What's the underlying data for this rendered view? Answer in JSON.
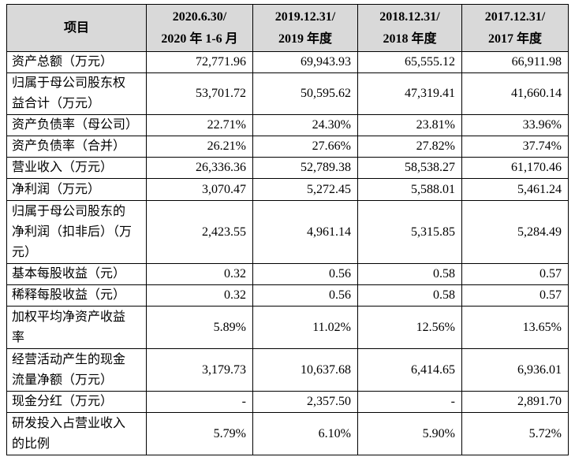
{
  "table": {
    "header": [
      [
        "项目"
      ],
      [
        "2020.6.30/",
        "2020 年 1-6 月"
      ],
      [
        "2019.12.31/",
        "2019 年度"
      ],
      [
        "2018.12.31/",
        "2018 年度"
      ],
      [
        "2017.12.31/",
        "2017 年度"
      ]
    ],
    "rows": [
      {
        "label": [
          "资产总额（万元）"
        ],
        "values": [
          "72,771.96",
          "69,943.93",
          "65,555.12",
          "66,911.98"
        ]
      },
      {
        "label": [
          "归属于母公司股东权",
          "益合计（万元）"
        ],
        "values": [
          "53,701.72",
          "50,595.62",
          "47,319.41",
          "41,660.14"
        ]
      },
      {
        "label": [
          "资产负债率（母公司）"
        ],
        "values": [
          "22.71%",
          "24.30%",
          "23.81%",
          "33.96%"
        ]
      },
      {
        "label": [
          "资产负债率（合并）"
        ],
        "values": [
          "26.21%",
          "27.66%",
          "27.82%",
          "37.74%"
        ]
      },
      {
        "label": [
          "营业收入（万元）"
        ],
        "values": [
          "26,336.36",
          "52,789.38",
          "58,538.27",
          "61,170.46"
        ]
      },
      {
        "label": [
          "净利润（万元）"
        ],
        "values": [
          "3,070.47",
          "5,272.45",
          "5,588.01",
          "5,461.24"
        ]
      },
      {
        "label": [
          "归属于母公司股东的",
          "净利润（扣非后）（万",
          "元）"
        ],
        "values": [
          "2,423.55",
          "4,961.14",
          "5,315.85",
          "5,284.49"
        ]
      },
      {
        "label": [
          "基本每股收益（元）"
        ],
        "values": [
          "0.32",
          "0.56",
          "0.58",
          "0.57"
        ]
      },
      {
        "label": [
          "稀释每股收益（元）"
        ],
        "values": [
          "0.32",
          "0.56",
          "0.58",
          "0.57"
        ]
      },
      {
        "label": [
          "加权平均净资产收益",
          "率"
        ],
        "values": [
          "5.89%",
          "11.02%",
          "12.56%",
          "13.65%"
        ]
      },
      {
        "label": [
          "经营活动产生的现金",
          "流量净额（万元）"
        ],
        "values": [
          "3,179.73",
          "10,637.68",
          "6,414.65",
          "6,936.01"
        ]
      },
      {
        "label": [
          "现金分红（万元）"
        ],
        "values": [
          "-",
          "2,357.50",
          "-",
          "2,891.70"
        ]
      },
      {
        "label": [
          "研发投入占营业收入",
          "的比例"
        ],
        "values": [
          "5.79%",
          "6.10%",
          "5.90%",
          "5.72%"
        ]
      }
    ]
  }
}
